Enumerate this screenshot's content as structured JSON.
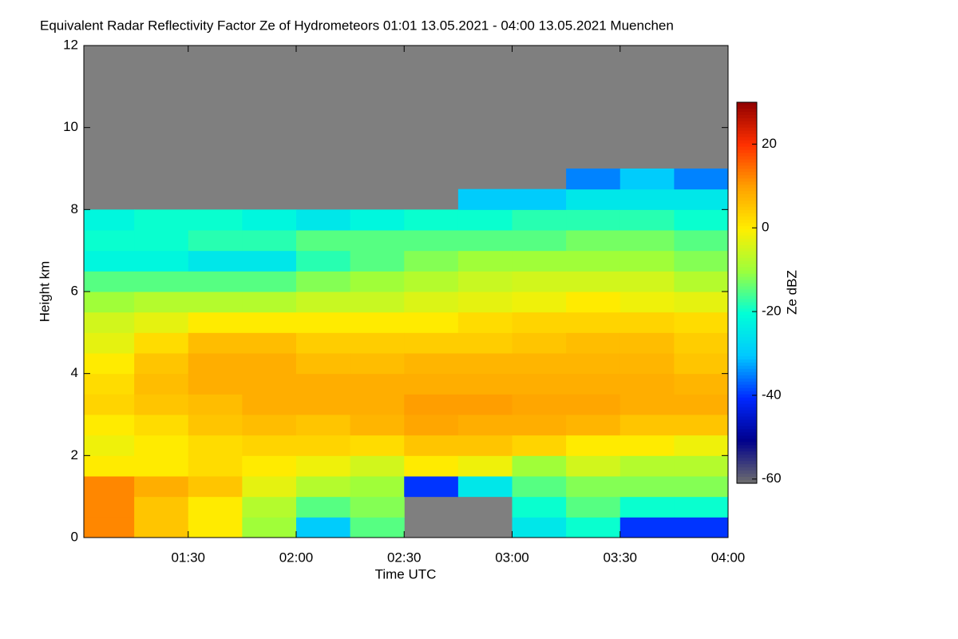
{
  "chart_data": {
    "type": "heatmap",
    "title": "Equivalent Radar Reflectivity Factor Ze of Hydrometeors   01:01 13.05.2021 - 04:00 13.05.2021 Muenchen",
    "x_label": "Time UTC",
    "y_label": "Height km",
    "colorbar_label": "Ze dBZ",
    "xlim": [
      "01:01",
      "04:00"
    ],
    "xticks": [
      "01:30",
      "02:00",
      "02:30",
      "03:00",
      "03:30",
      "04:00"
    ],
    "ylim": [
      0,
      12
    ],
    "yticks": [
      0,
      2,
      4,
      6,
      8,
      10,
      12
    ],
    "x_bins": [
      "01:00",
      "01:15",
      "01:30",
      "01:45",
      "02:00",
      "02:15",
      "02:30",
      "02:45",
      "03:00",
      "03:15",
      "03:30",
      "03:45",
      "04:00"
    ],
    "y_bins": [
      0,
      0.5,
      1,
      1.5,
      2,
      2.5,
      3,
      3.5,
      4,
      4.5,
      5,
      5.5,
      6,
      6.5,
      7,
      7.5,
      8,
      8.5,
      9
    ],
    "values": [
      [
        12,
        12,
        12,
        0,
        -2,
        0,
        3,
        2,
        0,
        -3,
        -5,
        -10,
        -15,
        -22,
        -20,
        -22,
        null,
        null
      ],
      [
        5,
        5,
        8,
        0,
        0,
        2,
        5,
        6,
        5,
        2,
        -3,
        -8,
        -15,
        -22,
        -20,
        -20,
        null,
        null
      ],
      [
        0,
        0,
        5,
        2,
        2,
        5,
        6,
        8,
        8,
        6,
        0,
        -8,
        -15,
        -25,
        -18,
        -20,
        null,
        null
      ],
      [
        -10,
        -8,
        -3,
        0,
        3,
        6,
        8,
        8,
        8,
        6,
        0,
        -8,
        -15,
        -25,
        -18,
        -22,
        null,
        null
      ],
      [
        -30,
        -15,
        -8,
        -2,
        3,
        5,
        8,
        8,
        6,
        4,
        0,
        -6,
        -12,
        -18,
        -15,
        -25,
        null,
        null
      ],
      [
        -15,
        -12,
        -10,
        -5,
        2,
        7,
        8,
        8,
        6,
        4,
        0,
        -6,
        -10,
        -15,
        -15,
        -22,
        null,
        null
      ],
      [
        null,
        null,
        -40,
        0,
        5,
        9,
        10,
        8,
        7,
        4,
        0,
        -4,
        -8,
        -12,
        -15,
        -20,
        null,
        null
      ],
      [
        null,
        null,
        -25,
        -2,
        5,
        8,
        10,
        8,
        7,
        4,
        2,
        -3,
        -6,
        -10,
        -15,
        -20,
        -30,
        null
      ],
      [
        -25,
        -20,
        -15,
        -10,
        3,
        8,
        9,
        8,
        7,
        5,
        3,
        -2,
        -5,
        -10,
        -15,
        -18,
        -30,
        null
      ],
      [
        -20,
        -15,
        -12,
        -5,
        0,
        7,
        9,
        8,
        7,
        6,
        3,
        0,
        -5,
        -10,
        -13,
        -18,
        -25,
        -35
      ],
      [
        -40,
        -20,
        -12,
        -8,
        0,
        5,
        8,
        8,
        7,
        6,
        3,
        -2,
        -5,
        -10,
        -13,
        -18,
        -25,
        -30
      ],
      [
        -40,
        -20,
        -12,
        -8,
        -2,
        5,
        8,
        7,
        5,
        4,
        2,
        -3,
        -8,
        -12,
        -15,
        -20,
        -25,
        -35
      ]
    ],
    "colorlim": [
      -61,
      30
    ],
    "colorticks": [
      -60,
      -40,
      -20,
      0,
      20
    ],
    "colormap": [
      "#6e6e6e",
      "#00008c",
      "#0028ff",
      "#00c8ff",
      "#00ffd8",
      "#9cff3c",
      "#ffee00",
      "#ffa000",
      "#ff3000",
      "#900000"
    ],
    "nodata_color": "#7f7f7f"
  }
}
